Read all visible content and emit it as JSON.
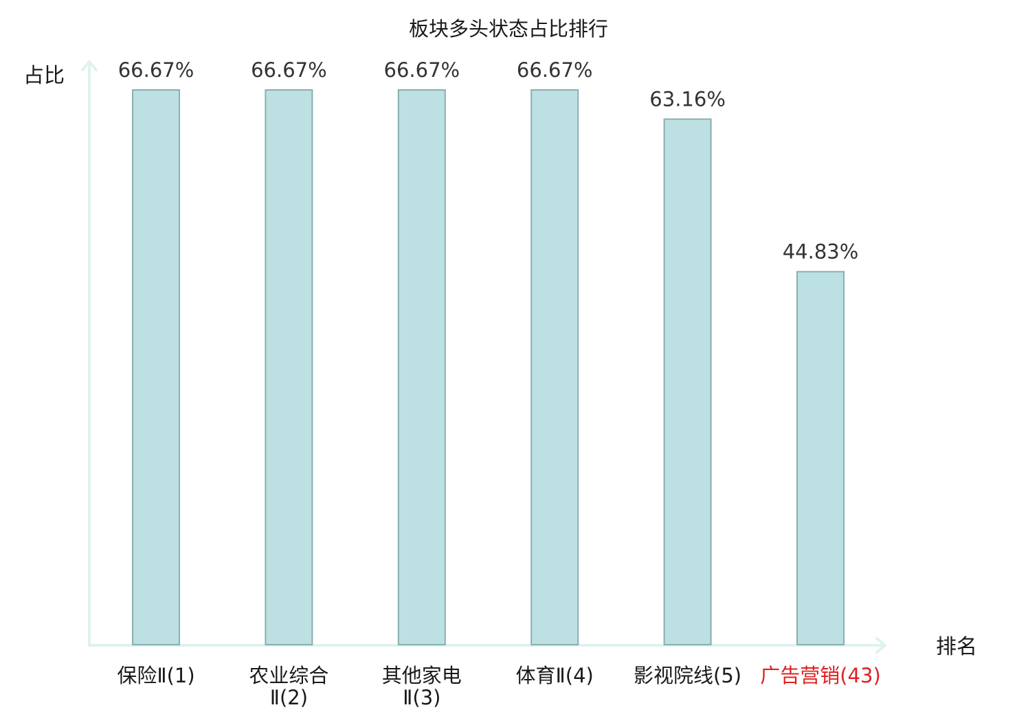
{
  "chart_data": {
    "type": "bar",
    "title": "板块多头状态占比排行",
    "ylabel": "占比",
    "xlabel": "排名",
    "categories": [
      [
        "保险Ⅱ(1)"
      ],
      [
        "农业综合",
        "Ⅱ(2)"
      ],
      [
        "其他家电",
        "Ⅱ(3)"
      ],
      [
        "体育Ⅱ(4)"
      ],
      [
        "影视院线(5)"
      ],
      [
        "广告营销(43)"
      ]
    ],
    "values": [
      66.67,
      66.67,
      66.67,
      66.67,
      63.16,
      44.83
    ],
    "value_labels": [
      "66.67%",
      "66.67%",
      "66.67%",
      "66.67%",
      "63.16%",
      "44.83%"
    ],
    "highlighted": [
      false,
      false,
      false,
      false,
      false,
      true
    ],
    "ylim": [
      0,
      66.67
    ],
    "grid": false,
    "colors": {
      "bar_fill": "#bde1e3",
      "bar_stroke": "#8aaeb0",
      "axis": "#e0f2ee",
      "highlight_text": "#e02020"
    }
  }
}
